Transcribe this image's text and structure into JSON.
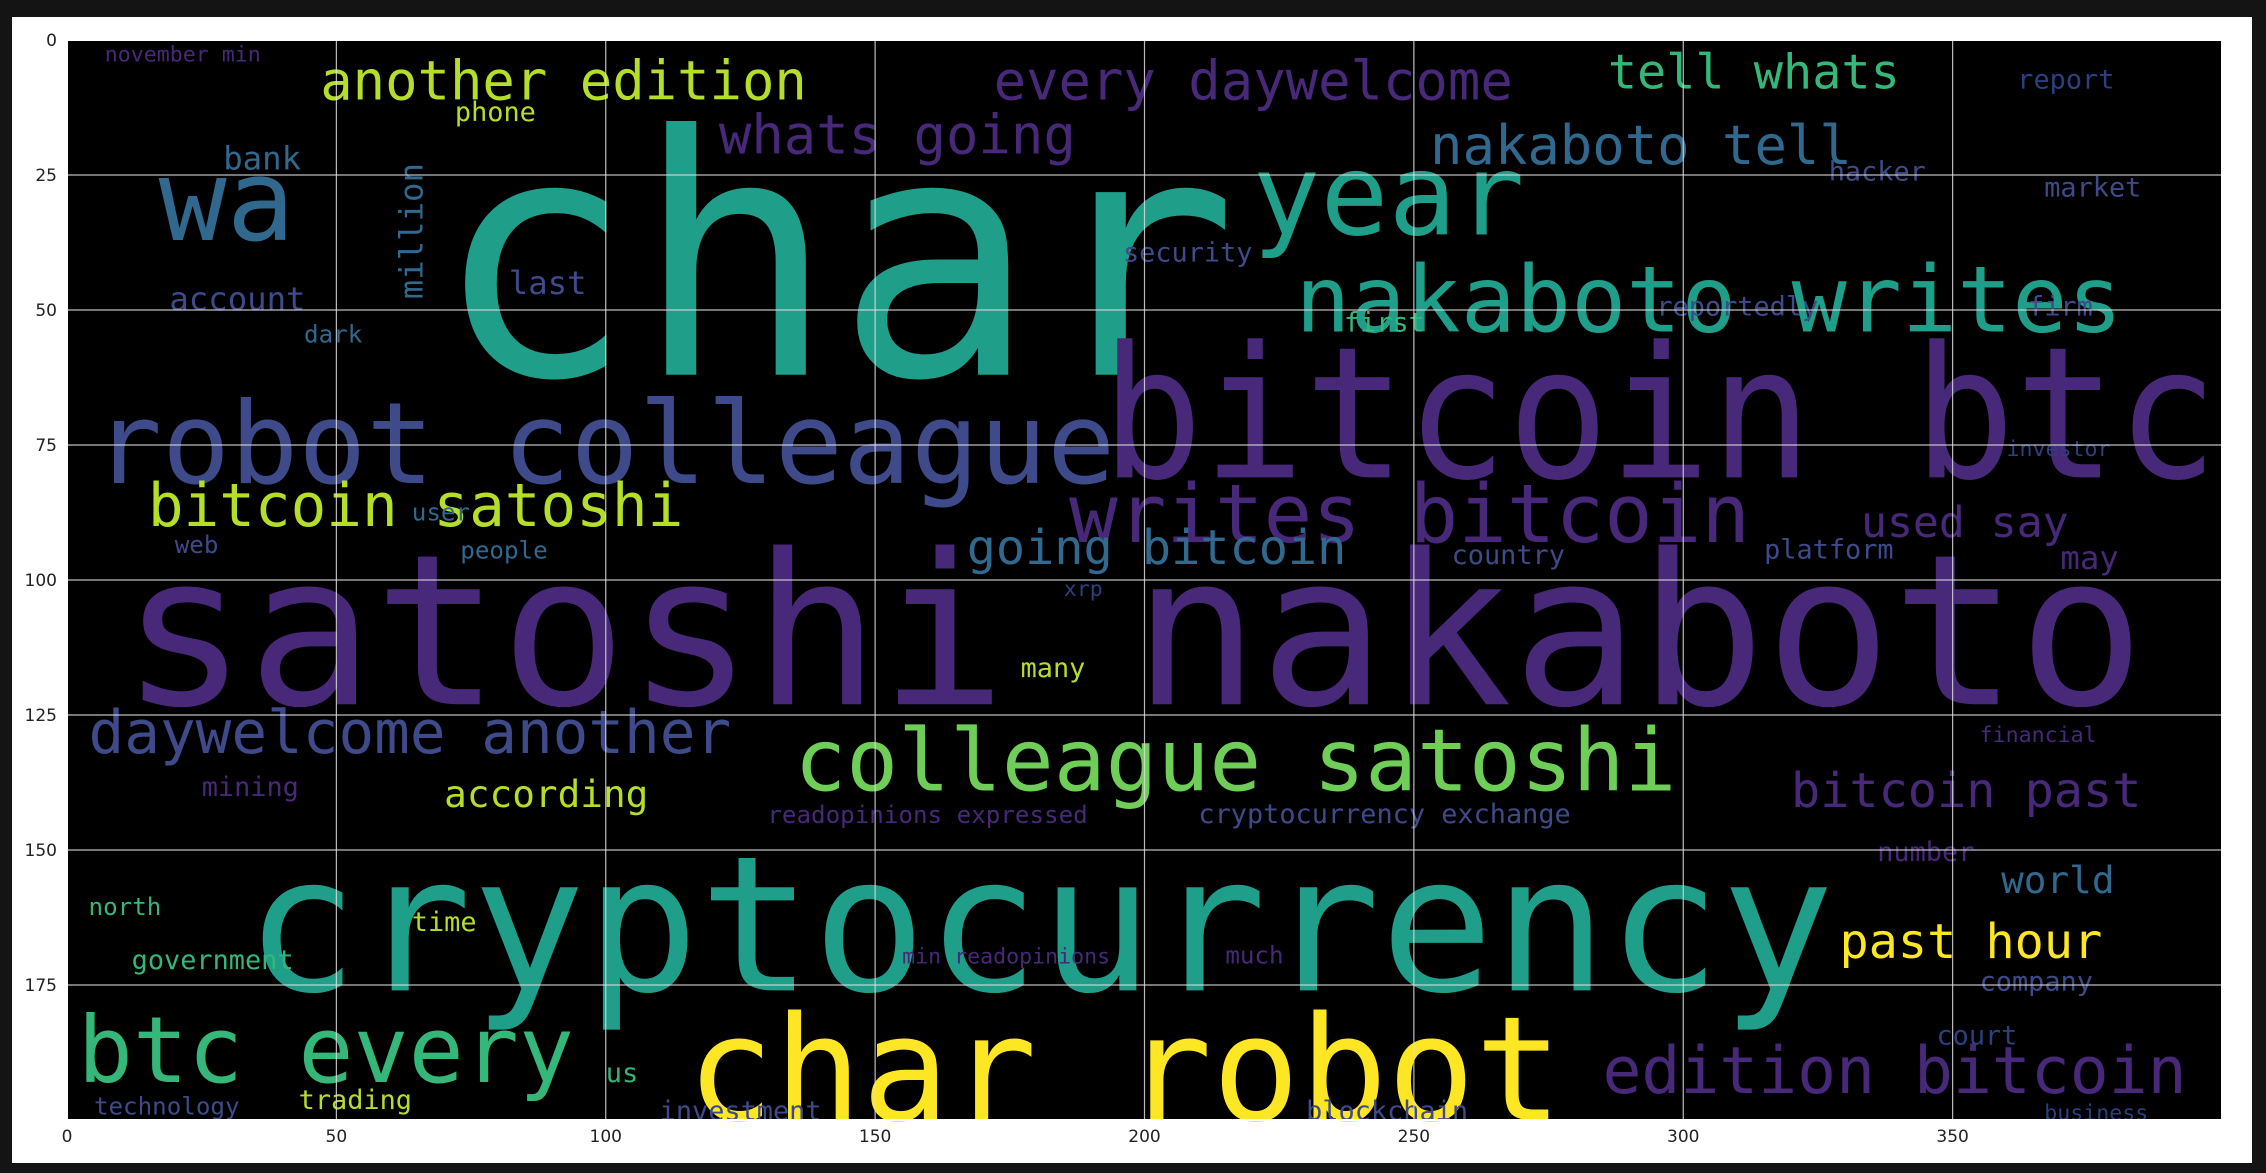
{
  "axes": {
    "x_ticks": [
      "0",
      "50",
      "100",
      "150",
      "200",
      "250",
      "300",
      "350"
    ],
    "x_tick_values": [
      0,
      50,
      100,
      150,
      200,
      250,
      300,
      350
    ],
    "y_ticks": [
      "0",
      "25",
      "50",
      "75",
      "100",
      "125",
      "150",
      "175"
    ],
    "y_tick_values": [
      0,
      25,
      50,
      75,
      100,
      125,
      150,
      175
    ],
    "xlim": [
      0,
      400
    ],
    "ylim": [
      200,
      0
    ],
    "grid": true
  },
  "colors": {
    "purple": "#482878",
    "blue": "#3e4a89",
    "slate": "#31688e",
    "teal": "#1f9e89",
    "green": "#35b779",
    "lime": "#6ece58",
    "yellow": "#fde725",
    "olive": "#b5de2b",
    "navy": "#2c3f7f"
  },
  "words": [
    {
      "text": "char",
      "x": 68,
      "y": 62,
      "size": 62,
      "color": "teal"
    },
    {
      "text": "satoshi nakaboto",
      "x": 10,
      "y": 123,
      "size": 39,
      "color": "purple"
    },
    {
      "text": "cryptocurrency",
      "x": 33,
      "y": 176,
      "size": 35,
      "color": "teal"
    },
    {
      "text": "bitcoin btc",
      "x": 192,
      "y": 81,
      "size": 34,
      "color": "purple"
    },
    {
      "text": "char robot",
      "x": 115,
      "y": 200,
      "size": 27,
      "color": "yellow"
    },
    {
      "text": "robot colleague",
      "x": 5,
      "y": 82,
      "size": 21,
      "color": "blue"
    },
    {
      "text": "year",
      "x": 220,
      "y": 36,
      "size": 21,
      "color": "teal"
    },
    {
      "text": "wa",
      "x": 17,
      "y": 37,
      "size": 21,
      "color": "slate"
    },
    {
      "text": "nakaboto writes",
      "x": 228,
      "y": 54,
      "size": 17,
      "color": "teal"
    },
    {
      "text": "writes bitcoin",
      "x": 186,
      "y": 93,
      "size": 15,
      "color": "purple"
    },
    {
      "text": "colleague satoshi",
      "x": 135,
      "y": 139,
      "size": 16,
      "color": "lime"
    },
    {
      "text": "btc every",
      "x": 2,
      "y": 193,
      "size": 17,
      "color": "green"
    },
    {
      "text": "edition bitcoin",
      "x": 285,
      "y": 195,
      "size": 12,
      "color": "purple"
    },
    {
      "text": "daywelcome another",
      "x": 4,
      "y": 132,
      "size": 11,
      "color": "blue"
    },
    {
      "text": "bitcoin satoshi",
      "x": 15,
      "y": 90,
      "size": 11,
      "color": "olive"
    },
    {
      "text": "another edition",
      "x": 47,
      "y": 11,
      "size": 10,
      "color": "olive"
    },
    {
      "text": "every daywelcome",
      "x": 172,
      "y": 11,
      "size": 10,
      "color": "purple"
    },
    {
      "text": "tell whats",
      "x": 286,
      "y": 9,
      "size": 9,
      "color": "green"
    },
    {
      "text": "nakaboto tell",
      "x": 253,
      "y": 23,
      "size": 10,
      "color": "slate"
    },
    {
      "text": "whats going",
      "x": 121,
      "y": 21,
      "size": 10,
      "color": "purple"
    },
    {
      "text": "going bitcoin",
      "x": 167,
      "y": 97,
      "size": 9,
      "color": "slate"
    },
    {
      "text": "bitcoin past",
      "x": 320,
      "y": 142,
      "size": 9,
      "color": "purple"
    },
    {
      "text": "past hour",
      "x": 329,
      "y": 170,
      "size": 9,
      "color": "yellow"
    },
    {
      "text": "used say",
      "x": 333,
      "y": 92,
      "size": 8,
      "color": "purple"
    },
    {
      "text": "world",
      "x": 359,
      "y": 158,
      "size": 7,
      "color": "slate"
    },
    {
      "text": "may",
      "x": 370,
      "y": 98,
      "size": 6,
      "color": "purple"
    },
    {
      "text": "according",
      "x": 70,
      "y": 142,
      "size": 7,
      "color": "olive"
    },
    {
      "text": "million",
      "x": 66,
      "y": 48,
      "size": 6,
      "color": "slate",
      "rotate": true
    },
    {
      "text": "last",
      "x": 82,
      "y": 47,
      "size": 6,
      "color": "blue"
    },
    {
      "text": "bank",
      "x": 29,
      "y": 24,
      "size": 6,
      "color": "slate"
    },
    {
      "text": "account",
      "x": 19,
      "y": 50,
      "size": 6,
      "color": "blue"
    },
    {
      "text": "phone",
      "x": 72,
      "y": 15,
      "size": 5,
      "color": "olive"
    },
    {
      "text": "dark",
      "x": 44,
      "y": 56,
      "size": 4.5,
      "color": "slate"
    },
    {
      "text": "first",
      "x": 237,
      "y": 54,
      "size": 5,
      "color": "green"
    },
    {
      "text": "security",
      "x": 196,
      "y": 41,
      "size": 5,
      "color": "blue"
    },
    {
      "text": "reportedly",
      "x": 295,
      "y": 51,
      "size": 5,
      "color": "blue"
    },
    {
      "text": "firm",
      "x": 364,
      "y": 51,
      "size": 5,
      "color": "blue"
    },
    {
      "text": "report",
      "x": 362,
      "y": 9,
      "size": 5,
      "color": "navy"
    },
    {
      "text": "market",
      "x": 367,
      "y": 29,
      "size": 5,
      "color": "blue"
    },
    {
      "text": "hacker",
      "x": 327,
      "y": 26,
      "size": 5,
      "color": "blue"
    },
    {
      "text": "investor",
      "x": 360,
      "y": 77,
      "size": 4,
      "color": "navy"
    },
    {
      "text": "platform",
      "x": 315,
      "y": 96,
      "size": 5,
      "color": "blue"
    },
    {
      "text": "country",
      "x": 257,
      "y": 97,
      "size": 5,
      "color": "blue"
    },
    {
      "text": "people",
      "x": 73,
      "y": 96,
      "size": 4.5,
      "color": "slate"
    },
    {
      "text": "web",
      "x": 20,
      "y": 95,
      "size": 4.5,
      "color": "blue"
    },
    {
      "text": "user",
      "x": 64,
      "y": 89,
      "size": 4.5,
      "color": "slate"
    },
    {
      "text": "xrp",
      "x": 185,
      "y": 103,
      "size": 4,
      "color": "navy"
    },
    {
      "text": "many",
      "x": 177,
      "y": 118,
      "size": 5,
      "color": "olive"
    },
    {
      "text": "mining",
      "x": 25,
      "y": 140,
      "size": 5,
      "color": "purple"
    },
    {
      "text": "readopinions expressed",
      "x": 130,
      "y": 145,
      "size": 4.5,
      "color": "purple"
    },
    {
      "text": "cryptocurrency exchange",
      "x": 210,
      "y": 145,
      "size": 5,
      "color": "blue"
    },
    {
      "text": "number",
      "x": 336,
      "y": 152,
      "size": 5,
      "color": "purple"
    },
    {
      "text": "north",
      "x": 4,
      "y": 162,
      "size": 4.5,
      "color": "green"
    },
    {
      "text": "time",
      "x": 64,
      "y": 165,
      "size": 5,
      "color": "olive"
    },
    {
      "text": "government",
      "x": 12,
      "y": 172,
      "size": 5,
      "color": "green"
    },
    {
      "text": "min readopinions",
      "x": 155,
      "y": 171,
      "size": 4,
      "color": "purple"
    },
    {
      "text": "much",
      "x": 215,
      "y": 171,
      "size": 4.5,
      "color": "purple"
    },
    {
      "text": "company",
      "x": 355,
      "y": 176,
      "size": 5,
      "color": "blue"
    },
    {
      "text": "court",
      "x": 347,
      "y": 186,
      "size": 5,
      "color": "navy"
    },
    {
      "text": "us",
      "x": 100,
      "y": 193,
      "size": 5,
      "color": "green"
    },
    {
      "text": "trading",
      "x": 43,
      "y": 198,
      "size": 5,
      "color": "olive"
    },
    {
      "text": "technology",
      "x": 5,
      "y": 199,
      "size": 4.5,
      "color": "blue"
    },
    {
      "text": "investment",
      "x": 110,
      "y": 200,
      "size": 5,
      "color": "blue"
    },
    {
      "text": "blockchain",
      "x": 230,
      "y": 200,
      "size": 5,
      "color": "blue"
    },
    {
      "text": "business",
      "x": 367,
      "y": 200,
      "size": 4,
      "color": "navy"
    },
    {
      "text": "financial",
      "x": 355,
      "y": 130,
      "size": 4,
      "color": "purple"
    },
    {
      "text": "november min",
      "x": 7,
      "y": 4,
      "size": 4,
      "color": "purple"
    }
  ]
}
